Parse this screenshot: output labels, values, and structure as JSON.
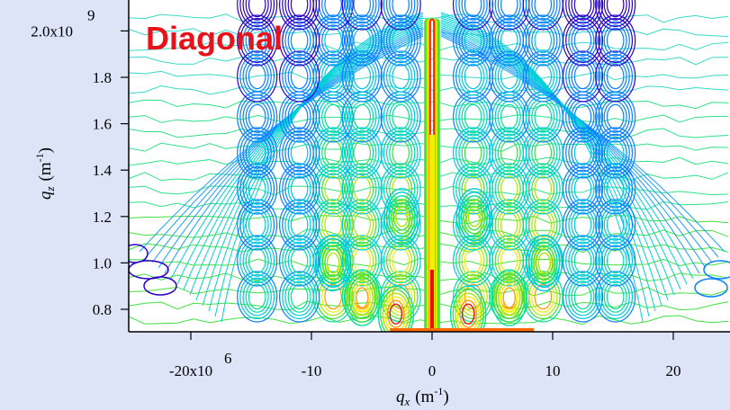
{
  "chart_data": {
    "type": "contour",
    "title": "Diagonal",
    "xlabel": {
      "var": "q",
      "sub": "x",
      "unit": "(m",
      "exp": "-1",
      "close": ")"
    },
    "ylabel": {
      "var": "q",
      "sub": "z",
      "unit": "(m",
      "exp": "-1",
      "close": ")"
    },
    "xlim": [
      -25000000,
      25000000
    ],
    "ylim": [
      710000000,
      2100000000
    ],
    "x_ticks": [
      {
        "value": -20000000,
        "label": "-20x10",
        "exp": "6"
      },
      {
        "value": -10000000,
        "label": "-10"
      },
      {
        "value": 0,
        "label": "0"
      },
      {
        "value": 10000000,
        "label": "10"
      },
      {
        "value": 20000000,
        "label": "20"
      }
    ],
    "y_ticks": [
      {
        "value": 800000000,
        "label": "0.8"
      },
      {
        "value": 1000000000,
        "label": "1.0"
      },
      {
        "value": 1200000000,
        "label": "1.2"
      },
      {
        "value": 1400000000,
        "label": "1.4"
      },
      {
        "value": 1600000000,
        "label": "1.6"
      },
      {
        "value": 1800000000,
        "label": "1.8"
      },
      {
        "value": 2000000000,
        "label": "2.0x10",
        "exp": "9"
      }
    ],
    "peaks": [
      {
        "qx": 0,
        "qz_from": 710000000,
        "qz_to": 2050000000,
        "level": 1.0
      },
      {
        "qx": -3000000,
        "qz": 780000000,
        "level": 0.95
      },
      {
        "qx": 3000000,
        "qz": 780000000,
        "level": 0.95
      },
      {
        "qx": -5800000,
        "qz": 850000000,
        "level": 0.85
      },
      {
        "qx": 6400000,
        "qz": 850000000,
        "level": 0.85
      },
      {
        "qx": -8200000,
        "qz": 1000000000,
        "level": 0.6
      },
      {
        "qx": 9300000,
        "qz": 1000000000,
        "level": 0.6
      },
      {
        "qx": -2500000,
        "qz": 1200000000,
        "level": 0.6
      },
      {
        "qx": 3500000,
        "qz": 1200000000,
        "level": 0.6
      }
    ],
    "colormap": [
      "#2a00c8",
      "#0a80ff",
      "#00c8e0",
      "#00e0a0",
      "#40e040",
      "#a8e800",
      "#f0f000",
      "#ff9a00",
      "#e81010"
    ],
    "background": "#dde4f7",
    "plot_background": "#ffffff",
    "title_color": "#e8121a"
  }
}
